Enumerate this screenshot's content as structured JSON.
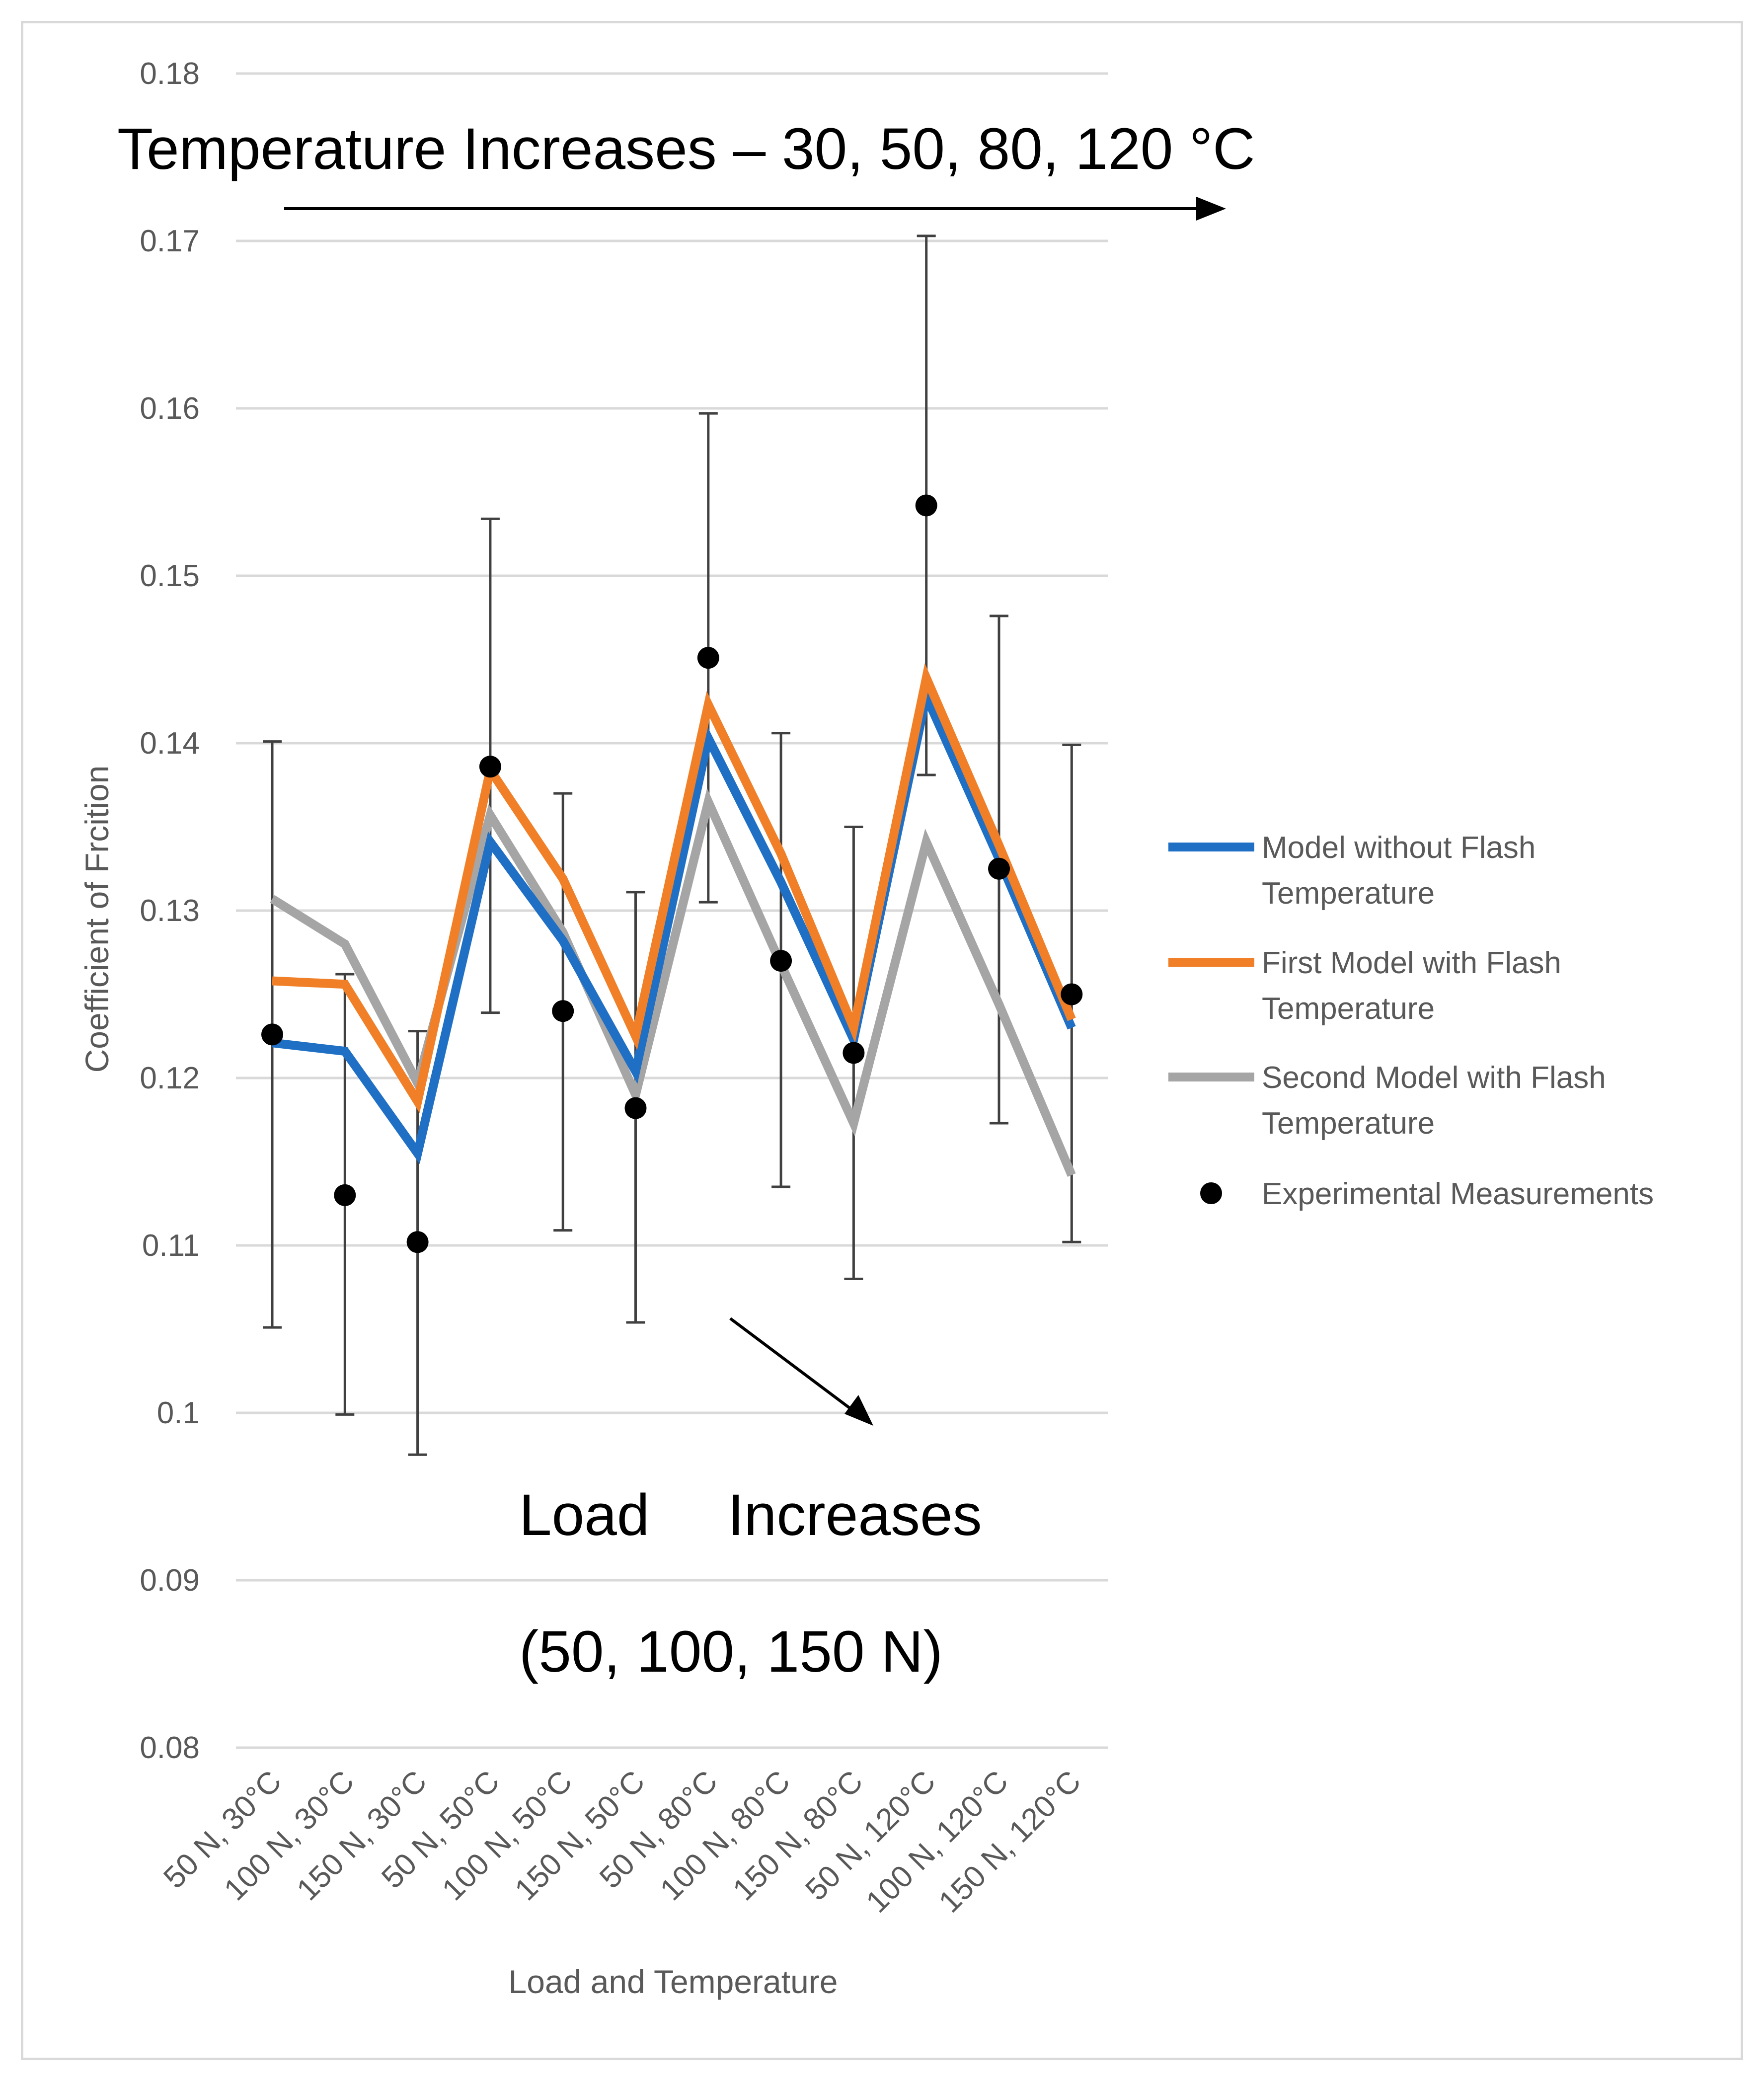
{
  "chart_data": {
    "type": "line",
    "title": "",
    "xlabel": "Load and Temperature",
    "ylabel": "Coefficient of Frcition",
    "ylim": [
      0.08,
      0.18
    ],
    "yticks": [
      0.08,
      0.09,
      0.1,
      0.11,
      0.12,
      0.13,
      0.14,
      0.15,
      0.16,
      0.17,
      0.18
    ],
    "ytick_labels": [
      "0.08",
      "0.09",
      "0.1",
      "0.11",
      "0.12",
      "0.13",
      "0.14",
      "0.15",
      "0.16",
      "0.17",
      "0.18"
    ],
    "grid": true,
    "legend_position": "right",
    "categories": [
      "50 N, 30°C",
      "100 N, 30°C",
      "150 N, 30°C",
      "50 N, 50°C",
      "100 N, 50°C",
      "150 N, 50°C",
      "50 N, 80°C",
      "100 N, 80°C",
      "150 N, 80°C",
      "50 N, 120°C",
      "100 N, 120°C",
      "150 N, 120°C"
    ],
    "series": [
      {
        "name": "Model without Flash Temperature",
        "legend_lines": [
          "Model without Flash",
          "Temperature"
        ],
        "color": "#1f6fc5",
        "type": "line",
        "values": [
          0.1221,
          0.1216,
          0.1155,
          0.1341,
          0.1282,
          0.1204,
          0.1403,
          0.1317,
          0.1223,
          0.1428,
          0.1331,
          0.123
        ]
      },
      {
        "name": "First Model with Flash Temperature",
        "legend_lines": [
          "First Model with Flash",
          "Temperature"
        ],
        "color": "#f07f27",
        "type": "line",
        "values": [
          0.1258,
          0.1256,
          0.1186,
          0.1384,
          0.1319,
          0.1225,
          0.1423,
          0.1334,
          0.123,
          0.1439,
          0.1339,
          0.1235
        ]
      },
      {
        "name": "Second Model with Flash Temperature",
        "legend_lines": [
          "Second Model with Flash",
          "Temperature"
        ],
        "color": "#a5a5a5",
        "type": "line",
        "values": [
          0.1307,
          0.128,
          0.1197,
          0.1357,
          0.1287,
          0.119,
          0.1365,
          0.1268,
          0.1173,
          0.1341,
          0.1244,
          0.1142
        ]
      },
      {
        "name": "Experimental Measurements",
        "legend_lines": [
          "Experimental Measurements"
        ],
        "color": "#000000",
        "type": "scatter",
        "values": [
          0.1226,
          0.113,
          0.1102,
          0.1386,
          0.124,
          0.1182,
          0.1451,
          0.127,
          0.1215,
          0.1542,
          0.1325,
          0.125
        ],
        "error_low": [
          0.1051,
          0.0999,
          0.0975,
          0.1239,
          0.1109,
          0.1054,
          0.1305,
          0.1135,
          0.108,
          0.1381,
          0.1173,
          0.1102
        ],
        "error_high": [
          0.1401,
          0.1262,
          0.1228,
          0.1534,
          0.137,
          0.1311,
          0.1597,
          0.1406,
          0.135,
          0.1703,
          0.1476,
          0.1399
        ]
      }
    ],
    "annotations": {
      "temperature": "Temperature Increases – 30, 50, 80, 120 °C",
      "load_word1": "Load",
      "load_word2": "Increases",
      "load_values": "(50, 100, 150 N)"
    }
  }
}
